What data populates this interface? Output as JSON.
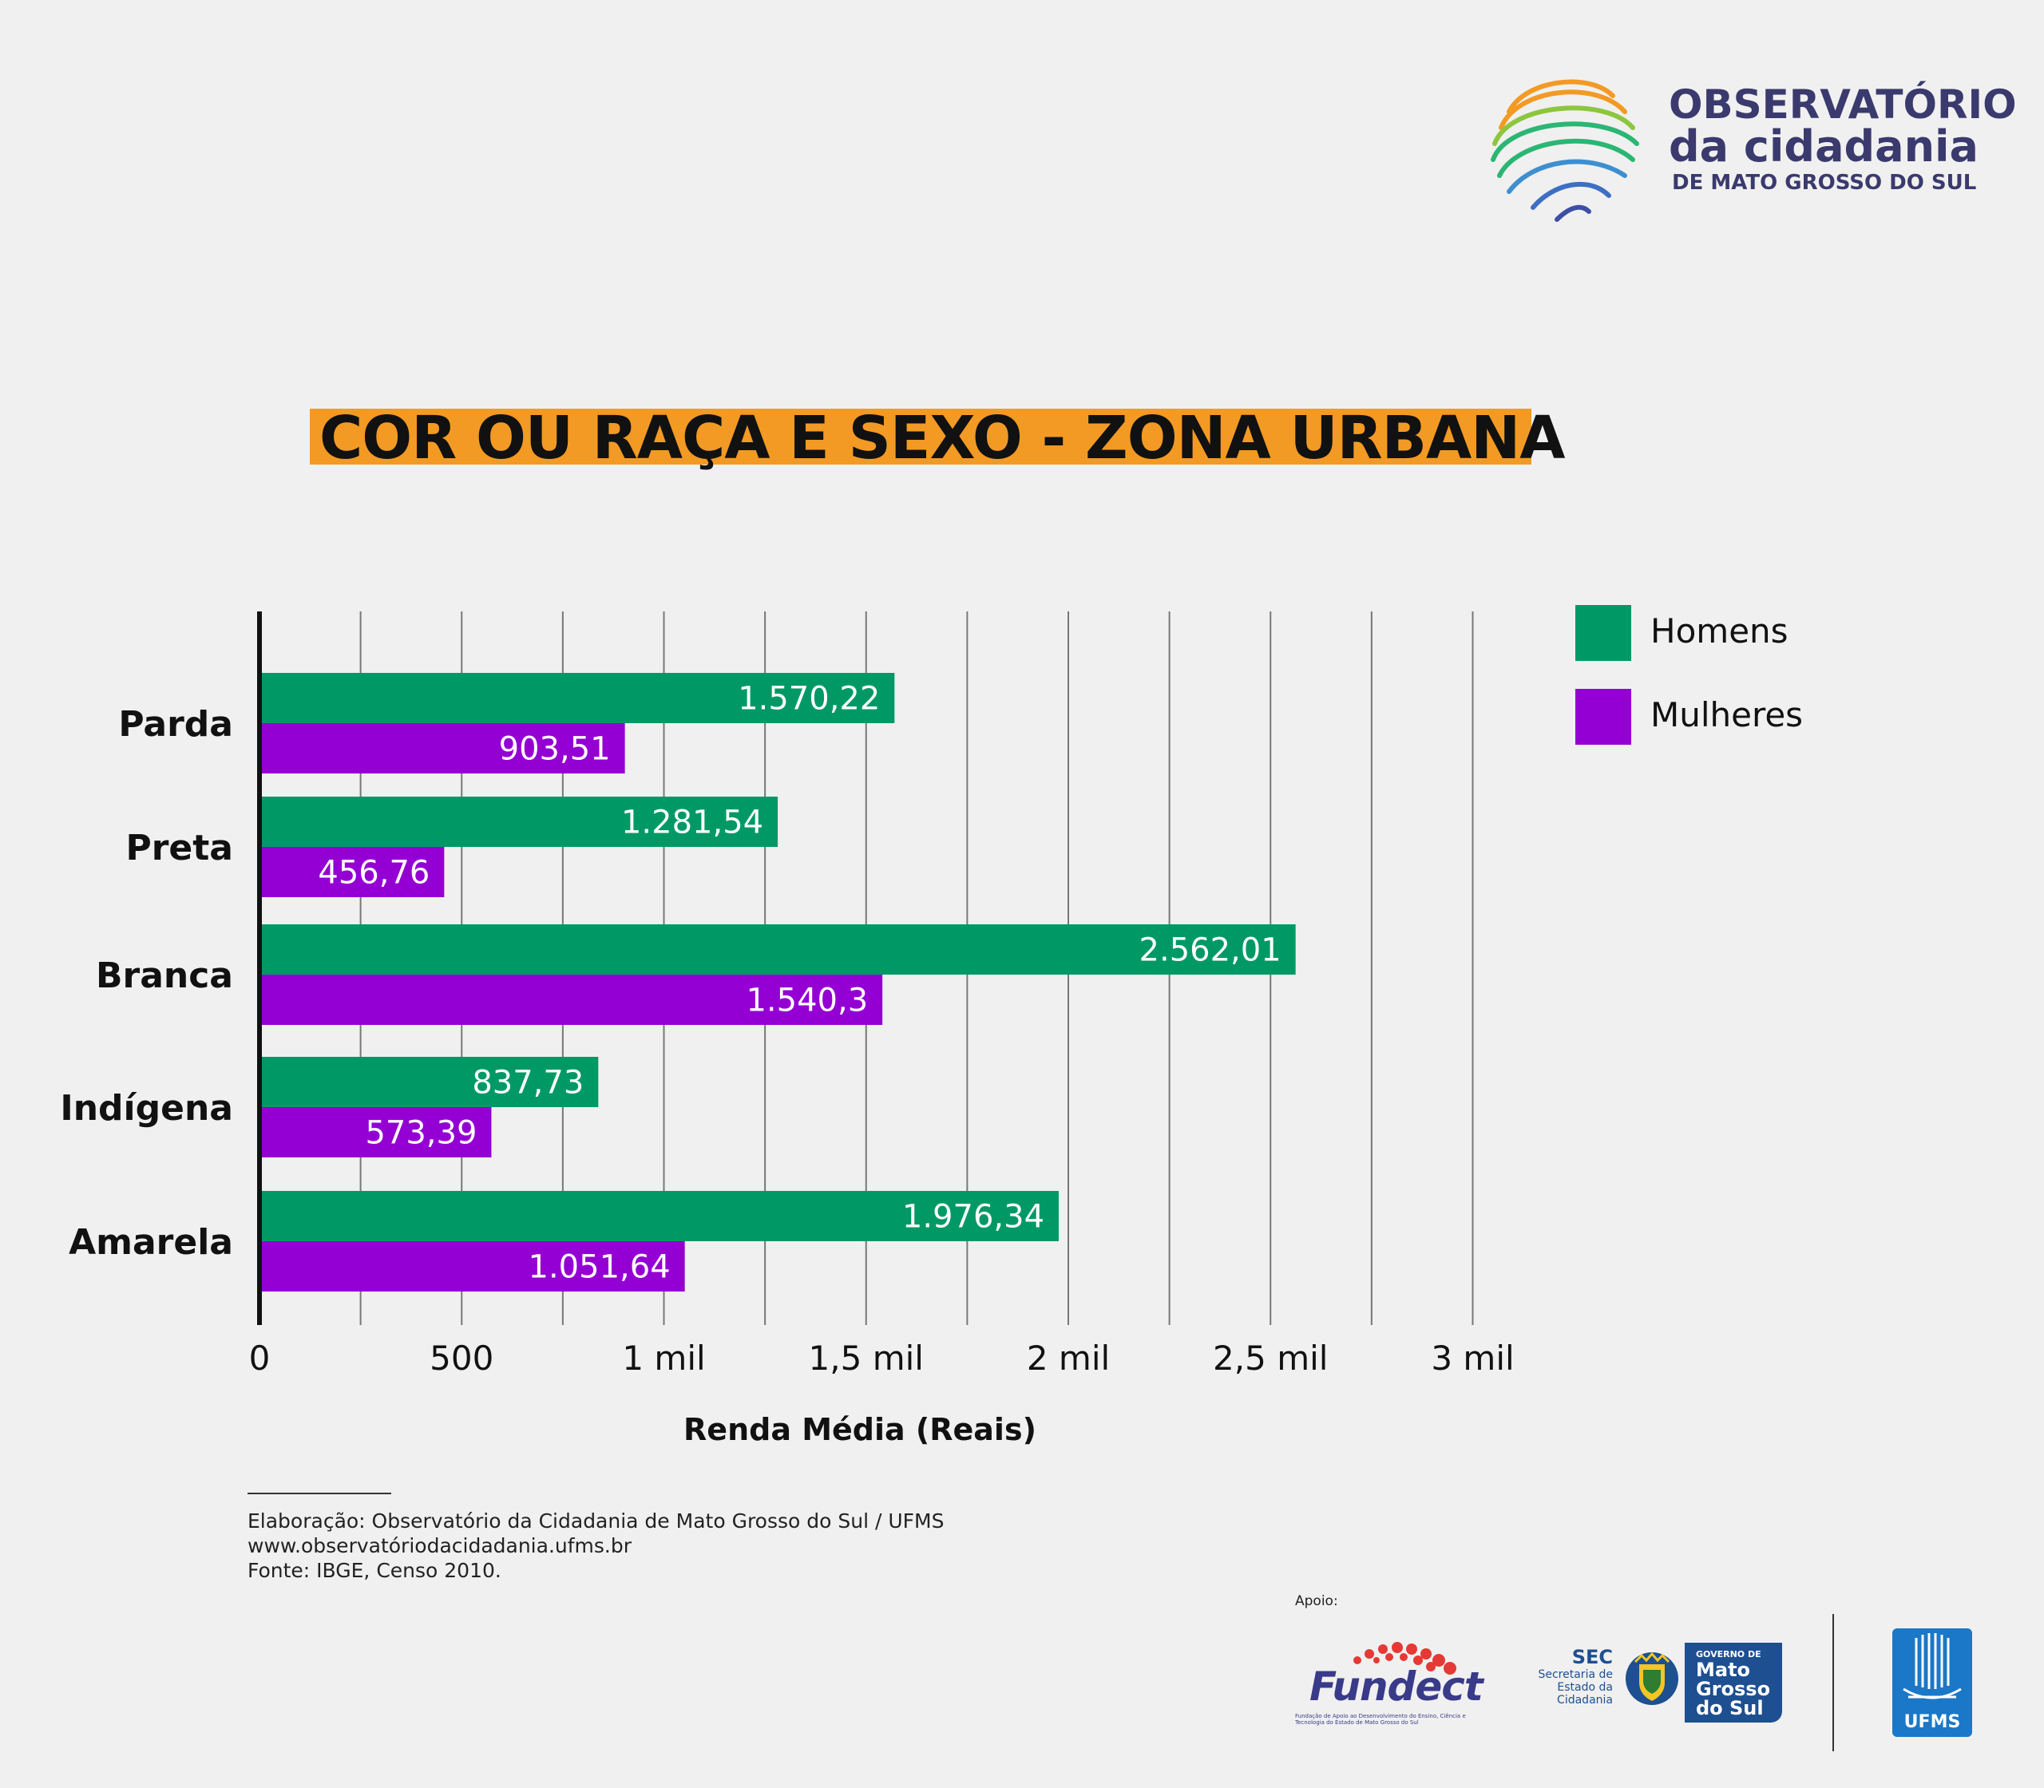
{
  "logo": {
    "line1": "OBSERVATÓRIO",
    "line2": "da cidadania",
    "line3": "DE MATO GROSSO DO SUL"
  },
  "chart_data": {
    "type": "bar",
    "orientation": "horizontal",
    "title": "COR OU RAÇA E SEXO - ZONA URBANA",
    "xlabel": "Renda Média (Reais)",
    "ylabel": "",
    "categories": [
      "Parda",
      "Preta",
      "Branca",
      "Indígena",
      "Amarela"
    ],
    "series": [
      {
        "name": "Homens",
        "color": "#009966",
        "values": [
          1570.22,
          1281.54,
          2562.01,
          837.73,
          1976.34
        ],
        "labels": [
          "1.570,22",
          "1.281,54",
          "2.562,01",
          "837,73",
          "1.976,34"
        ]
      },
      {
        "name": "Mulheres",
        "color": "#9400d3",
        "values": [
          903.51,
          456.76,
          1540.3,
          573.39,
          1051.64
        ],
        "labels": [
          "903,51",
          "456,76",
          "1.540,3",
          "573,39",
          "1.051,64"
        ]
      }
    ],
    "xlim": [
      0,
      3000
    ],
    "x_ticks": [
      0,
      250,
      500,
      750,
      1000,
      1250,
      1500,
      1750,
      2000,
      2250,
      2500,
      2750,
      3000
    ],
    "x_tick_labels": [
      {
        "value": 0,
        "label": "0"
      },
      {
        "value": 500,
        "label": "500"
      },
      {
        "value": 1000,
        "label": "1 mil"
      },
      {
        "value": 1500,
        "label": "1,5 mil"
      },
      {
        "value": 2000,
        "label": "2 mil"
      },
      {
        "value": 2500,
        "label": "2,5 mil"
      },
      {
        "value": 3000,
        "label": "3 mil"
      }
    ],
    "grid": true,
    "legend_position": "top-right"
  },
  "footer": {
    "line1": "Elaboração: Observatório da Cidadania de Mato Grosso do Sul / UFMS",
    "line2": "www.observatóriodacidadania.ufms.br",
    "line3": "Fonte: IBGE, Censo 2010."
  },
  "sponsors": {
    "apoio_label": "Apoio:",
    "fundect": {
      "name": "Fundect",
      "subtitle": "Fundação de Apoio ao Desenvolvimento do Ensino, Ciência e Tecnologia do Estado de Mato Grosso do Sul"
    },
    "sec": {
      "name": "SEC",
      "sub1": "Secretaria de",
      "sub2": "Estado da",
      "sub3": "Cidadania"
    },
    "governo": {
      "small": "GOVERNO DE",
      "line1": "Mato",
      "line2": "Grosso",
      "line3": "do Sul"
    },
    "ufms": "UFMS"
  }
}
